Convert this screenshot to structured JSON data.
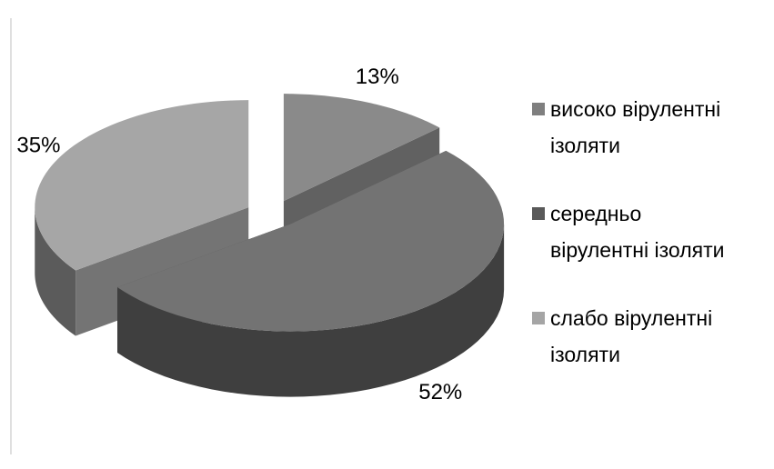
{
  "chart_data": {
    "type": "pie",
    "categories": [
      "високо вірулентні ізоляти",
      "середньо вірулентні ізоляти",
      "слабо вірулентні ізоляти"
    ],
    "values": [
      13,
      52,
      35
    ],
    "value_labels": [
      "13%",
      "52%",
      "35%"
    ],
    "colors": [
      "#8a8a8a",
      "#737373",
      "#a6a6a6"
    ],
    "legend_colors": [
      "#7f7f7f",
      "#595959",
      "#a5a5a5"
    ],
    "legend": "right"
  }
}
